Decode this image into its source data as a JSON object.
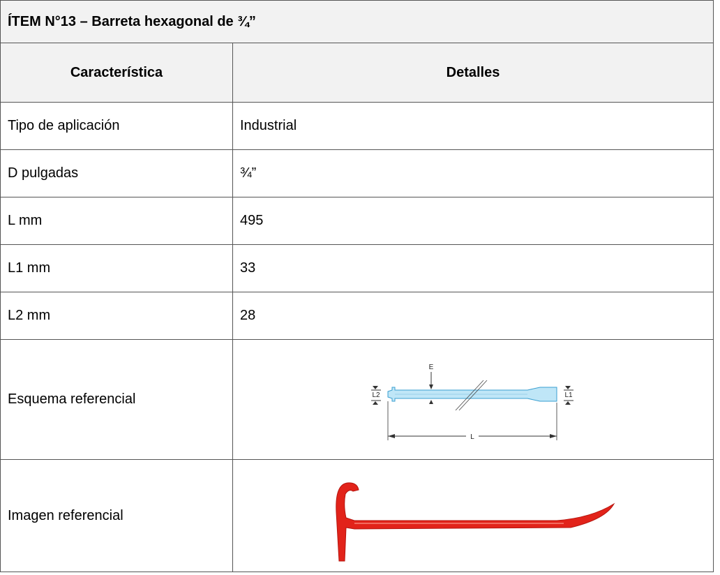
{
  "title": "ÍTEM N°13 – Barreta hexagonal de ¾”",
  "table": {
    "header": [
      "Característica",
      "Detalles"
    ],
    "rows": [
      {
        "label": "Tipo de aplicación",
        "value": "Industrial"
      },
      {
        "label": "D pulgadas",
        "value": "¾”"
      },
      {
        "label": "L mm",
        "value": "495"
      },
      {
        "label": "L1 mm",
        "value": "33"
      },
      {
        "label": "L2 mm",
        "value": "28"
      },
      {
        "label": "Esquema referencial",
        "diagram_labels": {
          "e": "E",
          "l": "L",
          "l1": "L1",
          "l2": "L2"
        }
      },
      {
        "label": "Imagen referencial"
      }
    ]
  }
}
